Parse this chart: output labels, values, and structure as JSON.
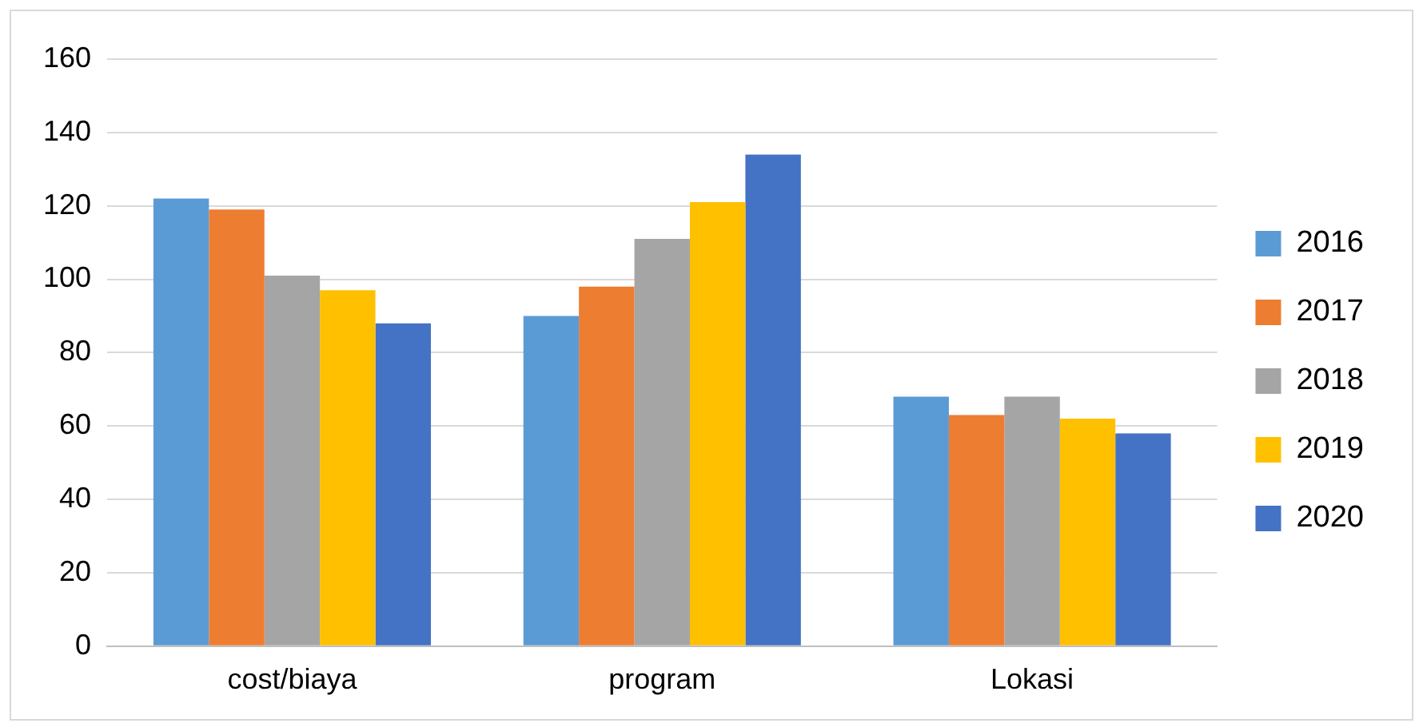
{
  "chart_data": {
    "type": "bar",
    "categories": [
      "cost/biaya",
      "program",
      "Lokasi"
    ],
    "series": [
      {
        "name": "2016",
        "color": "#5b9bd5",
        "values": [
          122,
          90,
          68
        ]
      },
      {
        "name": "2017",
        "color": "#ed7d31",
        "values": [
          119,
          98,
          63
        ]
      },
      {
        "name": "2018",
        "color": "#a5a5a5",
        "values": [
          101,
          111,
          68
        ]
      },
      {
        "name": "2019",
        "color": "#ffc000",
        "values": [
          97,
          121,
          62
        ]
      },
      {
        "name": "2020",
        "color": "#4472c4",
        "values": [
          88,
          134,
          58
        ]
      }
    ],
    "ylim": [
      0,
      160
    ],
    "yticks": [
      0,
      20,
      40,
      60,
      80,
      100,
      120,
      140,
      160
    ],
    "grid": "y",
    "legend": "right"
  }
}
